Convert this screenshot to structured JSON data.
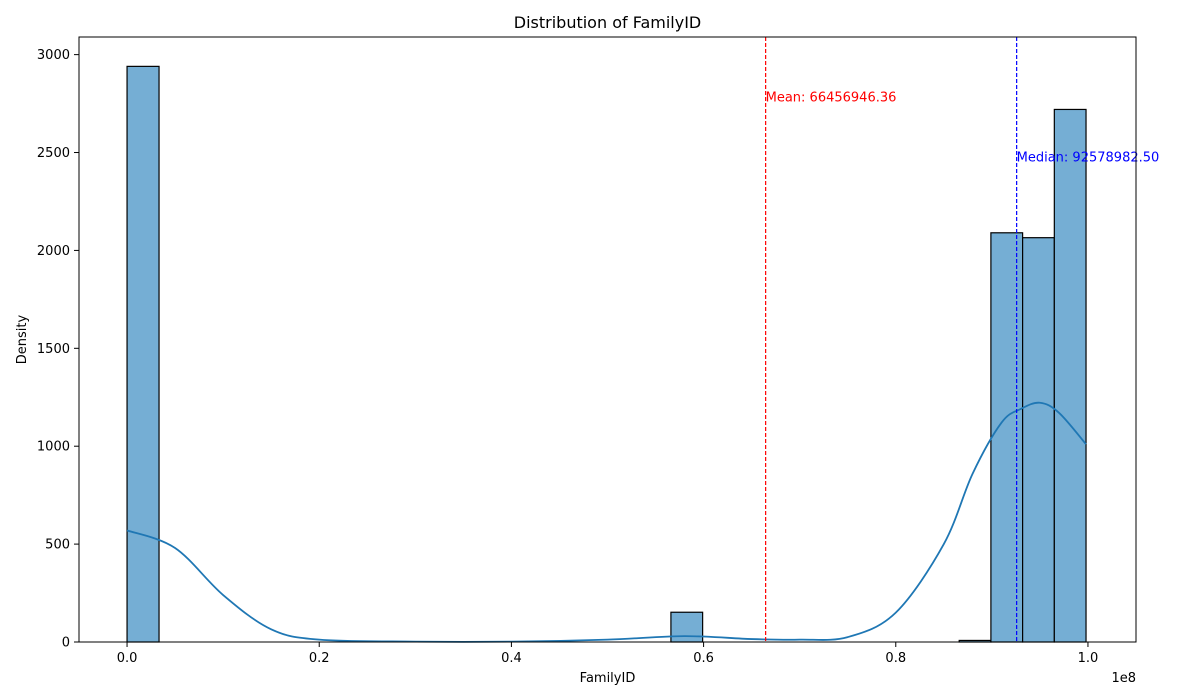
{
  "chart_data": {
    "type": "bar",
    "title": "Distribution of FamilyID",
    "xlabel": "FamilyID",
    "ylabel": "Density",
    "x_offset_label": "1e8",
    "xlim": [
      -5000000,
      105000000
    ],
    "ylim": [
      0,
      3090
    ],
    "xticks": [
      0,
      20000000,
      40000000,
      60000000,
      80000000,
      100000000
    ],
    "xtick_labels": [
      "0.0",
      "0.2",
      "0.4",
      "0.6",
      "0.8",
      "1.0"
    ],
    "yticks": [
      0,
      500,
      1000,
      1500,
      2000,
      2500,
      3000
    ],
    "ytick_labels": [
      "0",
      "500",
      "1000",
      "1500",
      "2000",
      "2500",
      "3000"
    ],
    "grid": false,
    "histogram": {
      "color": "#75aed4",
      "edge_color": "#000000",
      "bins": [
        {
          "start": 0,
          "end": 3330000,
          "count": 2940
        },
        {
          "start": 56600000,
          "end": 59900000,
          "count": 152
        },
        {
          "start": 86600000,
          "end": 89900000,
          "count": 8
        },
        {
          "start": 89900000,
          "end": 93200000,
          "count": 2090
        },
        {
          "start": 93200000,
          "end": 96500000,
          "count": 2065
        },
        {
          "start": 96500000,
          "end": 99800000,
          "count": 2720
        }
      ]
    },
    "kde": {
      "color": "#1f77b4",
      "x": [
        0,
        5000000,
        10000000,
        15000000,
        20000000,
        30000000,
        40000000,
        50000000,
        58000000,
        65000000,
        70000000,
        75000000,
        80000000,
        85000000,
        88000000,
        91000000,
        93000000,
        95000000,
        97000000,
        99800000
      ],
      "y": [
        570,
        480,
        240,
        65,
        12,
        2,
        2,
        12,
        30,
        15,
        12,
        25,
        150,
        500,
        860,
        1120,
        1190,
        1222,
        1170,
        1010
      ]
    },
    "reference_lines": [
      {
        "name": "mean",
        "value": 66456946.36,
        "color": "#ff0000",
        "label": "Mean: 66456946.36",
        "label_y": 2760
      },
      {
        "name": "median",
        "value": 92578982.5,
        "color": "#0000ff",
        "label": "Median: 92578982.50",
        "label_y": 2455
      }
    ]
  }
}
